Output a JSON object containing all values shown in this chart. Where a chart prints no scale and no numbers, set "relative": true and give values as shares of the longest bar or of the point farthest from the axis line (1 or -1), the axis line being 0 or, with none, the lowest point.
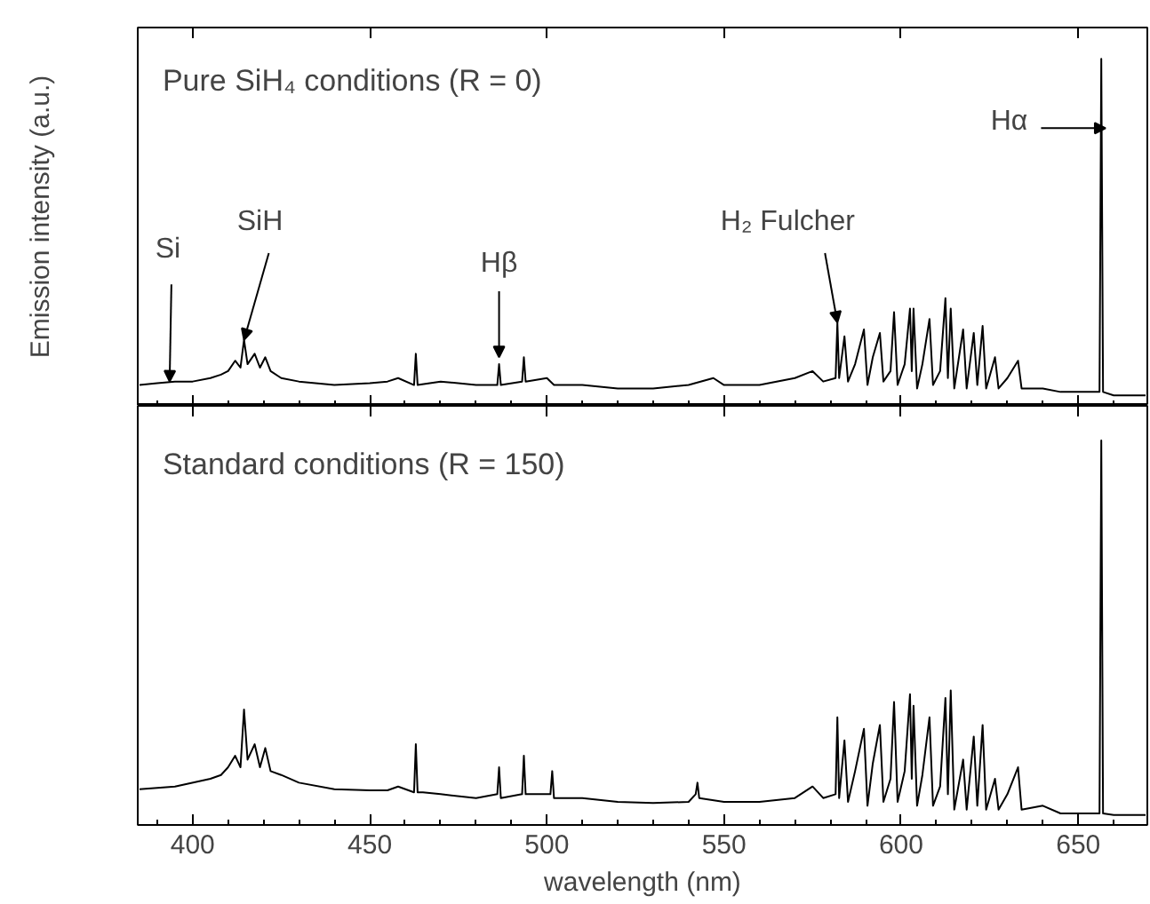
{
  "chart_data": [
    {
      "type": "line",
      "relative": true,
      "ylabel": "Emission intensity (a.u.)",
      "xlim": [
        384.5,
        669.5
      ],
      "xticks": [
        400,
        450,
        500,
        550,
        600,
        650
      ],
      "tick_labels": false,
      "grid": false,
      "annotations": [
        "Pure SiH₄ conditions (R = 0)",
        {
          "text": "Si",
          "x": 393.5,
          "y": 0.07
        },
        {
          "text": "SiH",
          "x": 414.5,
          "y": 0.19
        },
        {
          "text": "Hβ",
          "x": 486.5,
          "y": 0.14
        },
        {
          "text": "H₂ Fulcher",
          "x": 582,
          "y": 0.24
        },
        {
          "text": "Hα",
          "x": 656.5,
          "y": 0.8
        }
      ],
      "x": [
        385,
        390,
        395,
        400,
        405,
        408,
        410,
        412,
        413.5,
        414.5,
        415.5,
        417.5,
        419,
        420.5,
        422,
        425,
        430,
        440,
        450,
        455,
        458,
        462.5,
        463,
        463.5,
        470,
        480,
        486,
        486.5,
        487,
        493,
        493.5,
        494,
        500,
        502,
        510,
        520,
        530,
        540,
        547,
        550,
        560,
        570,
        575,
        578,
        581.5,
        582,
        582.5,
        584,
        585,
        587,
        589.5,
        590.5,
        592,
        594,
        595,
        597,
        598,
        599,
        601,
        602.5,
        603,
        603.5,
        604.5,
        606,
        608,
        609,
        611,
        612.5,
        613.2,
        614,
        615,
        617.5,
        618.5,
        620.5,
        621.5,
        623,
        624,
        626.5,
        627.5,
        630,
        633,
        634,
        640,
        645,
        656,
        656.5,
        657,
        660,
        665,
        669
      ],
      "series": [
        {
          "color": "#000000",
          "values": [
            0.06,
            0.065,
            0.07,
            0.07,
            0.08,
            0.09,
            0.1,
            0.13,
            0.11,
            0.19,
            0.12,
            0.15,
            0.11,
            0.14,
            0.1,
            0.08,
            0.07,
            0.06,
            0.065,
            0.07,
            0.08,
            0.06,
            0.15,
            0.06,
            0.07,
            0.06,
            0.06,
            0.12,
            0.06,
            0.07,
            0.14,
            0.07,
            0.08,
            0.06,
            0.06,
            0.05,
            0.05,
            0.06,
            0.08,
            0.06,
            0.06,
            0.08,
            0.1,
            0.07,
            0.08,
            0.24,
            0.08,
            0.2,
            0.07,
            0.12,
            0.22,
            0.06,
            0.14,
            0.21,
            0.07,
            0.1,
            0.27,
            0.06,
            0.12,
            0.28,
            0.1,
            0.28,
            0.05,
            0.12,
            0.25,
            0.06,
            0.1,
            0.31,
            0.08,
            0.28,
            0.05,
            0.22,
            0.05,
            0.21,
            0.06,
            0.23,
            0.05,
            0.14,
            0.05,
            0.08,
            0.13,
            0.05,
            0.05,
            0.04,
            0.04,
            1.0,
            0.04,
            0.03,
            0.03,
            0.03
          ]
        }
      ]
    },
    {
      "type": "line",
      "relative": true,
      "xlabel": "wavelength (nm)",
      "xlim": [
        384.5,
        669.5
      ],
      "xticks": [
        400,
        450,
        500,
        550,
        600,
        650
      ],
      "tick_labels": "x",
      "grid": false,
      "annotations": [
        "Standard conditions (R = 150)"
      ],
      "x": [
        385,
        395,
        405,
        408,
        410,
        412,
        413.5,
        414.5,
        415.5,
        417.5,
        419,
        420.5,
        422,
        425,
        430,
        440,
        450,
        455,
        458,
        462.5,
        463,
        463.5,
        465,
        470,
        480,
        486,
        486.5,
        487,
        493,
        493.5,
        494,
        501,
        501.5,
        502,
        510,
        520,
        530,
        540,
        542,
        542.5,
        543,
        550,
        560,
        570,
        575,
        578,
        581.5,
        582,
        582.5,
        584,
        585,
        587,
        589.5,
        590.5,
        592,
        594,
        595,
        597,
        598,
        599,
        601,
        602.5,
        603,
        603.5,
        604.5,
        606,
        608,
        609,
        611,
        612.5,
        613.2,
        614,
        615,
        617.5,
        618.5,
        620.5,
        621.5,
        623,
        624,
        626.5,
        627.5,
        630,
        633,
        634,
        640,
        645,
        656,
        656.5,
        657,
        660,
        665,
        669
      ],
      "series": [
        {
          "color": "#000000",
          "values": [
            0.093,
            0.1,
            0.12,
            0.13,
            0.15,
            0.18,
            0.15,
            0.3,
            0.17,
            0.21,
            0.15,
            0.2,
            0.14,
            0.13,
            0.11,
            0.093,
            0.09,
            0.09,
            0.1,
            0.085,
            0.21,
            0.085,
            0.085,
            0.08,
            0.07,
            0.08,
            0.15,
            0.07,
            0.08,
            0.18,
            0.08,
            0.08,
            0.14,
            0.07,
            0.07,
            0.06,
            0.057,
            0.06,
            0.08,
            0.11,
            0.07,
            0.06,
            0.06,
            0.07,
            0.1,
            0.07,
            0.08,
            0.28,
            0.07,
            0.22,
            0.06,
            0.14,
            0.25,
            0.05,
            0.16,
            0.26,
            0.06,
            0.12,
            0.32,
            0.06,
            0.14,
            0.34,
            0.12,
            0.31,
            0.05,
            0.13,
            0.28,
            0.05,
            0.1,
            0.33,
            0.08,
            0.35,
            0.04,
            0.17,
            0.04,
            0.23,
            0.05,
            0.26,
            0.04,
            0.12,
            0.04,
            0.08,
            0.15,
            0.04,
            0.05,
            0.03,
            0.03,
            1.0,
            0.03,
            0.026,
            0.026,
            0.026
          ]
        }
      ]
    }
  ]
}
